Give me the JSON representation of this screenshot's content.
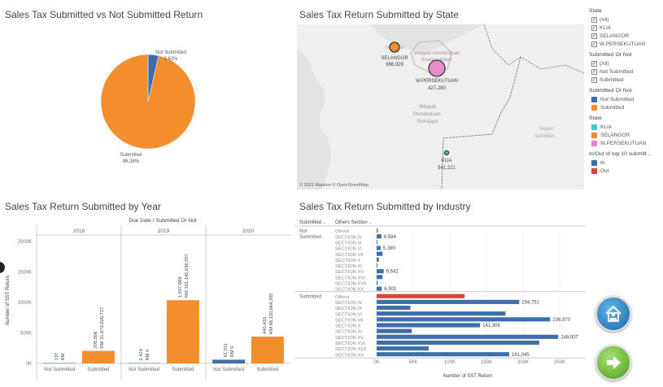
{
  "colors": {
    "not_submitted": "#3e6fa8",
    "submitted": "#f28e2b",
    "klia": "#4fc3d9",
    "selangor": "#f28e2b",
    "wpersekutuan": "#e67fc8",
    "in": "#3e6fa8",
    "out": "#d9453d"
  },
  "pie": {
    "title": "Sales Tax  Submitted vs Not Submitted Return",
    "chart_data": {
      "type": "pie",
      "slices": [
        {
          "label": "Not Submitted",
          "value": 3.62,
          "text": "3.62%"
        },
        {
          "label": "Submitted",
          "value": 96.38,
          "text": "96.38%"
        }
      ]
    }
  },
  "map": {
    "title": "Sales Tax Return Submitted by State",
    "attribution": "© 2021 Mapbox © OpenStreetMap",
    "places": [
      "Selangor",
      "Wilayah Persekutuan Kuala Lumpur",
      "Wilayah Persekutuan Putrajaya",
      "Negeri Sembilan"
    ],
    "place_labels": {
      "wilayah": "Wilayah",
      "persekutuan": "Persekutuan",
      "putrajaya": "Putrajaya",
      "negeri": "Negeri",
      "sembilan": "Sembilan"
    },
    "points": [
      {
        "state": "SELANGOR",
        "value": "986,929",
        "color": "#f28e2b"
      },
      {
        "state": "W.PERSEKUTUAN",
        "value": "427,280",
        "color": "#e67fc8"
      },
      {
        "state": "KLIA",
        "value": "541,221",
        "color": "#4fc3d9"
      }
    ]
  },
  "legend": {
    "state_filter": {
      "title": "State",
      "items": [
        "(All)",
        "KLIA",
        "SELANGOR",
        "W.PERSEKUTUAN"
      ]
    },
    "submitted_filter": {
      "title": "Submitted Or Not",
      "items": [
        "(All)",
        "Not Submitted",
        "Submitted"
      ]
    },
    "submitted_colors": {
      "title": "Submitted Or Not",
      "items": [
        {
          "label": "Not Submitted",
          "color": "#3e6fa8"
        },
        {
          "label": "Submitted",
          "color": "#f28e2b"
        }
      ]
    },
    "state_colors": {
      "title": "State",
      "items": [
        {
          "label": "KLIA",
          "color": "#4fc3d9"
        },
        {
          "label": "SELANGOR",
          "color": "#f28e2b"
        },
        {
          "label": "W.PERSEKUTUAN",
          "color": "#e67fc8"
        }
      ]
    },
    "top10_colors": {
      "title": "In/Out of top 10 submitt...",
      "items": [
        {
          "label": "In",
          "color": "#3e6fa8"
        },
        {
          "label": "Out",
          "color": "#d9453d"
        }
      ]
    }
  },
  "year_chart": {
    "title": "Sales Tax Return Submitted by Year",
    "chart_data": {
      "type": "bar",
      "header": "Due Date  /  Submitted Or Not",
      "ylabel": "Number of SST Return",
      "yticks": [
        "0K",
        "500K",
        "1000K",
        "1500K",
        "2000K"
      ],
      "ylim": [
        0,
        2000000
      ],
      "groups": [
        {
          "year": "2018",
          "bars": [
            {
              "category": "Not Submitted",
              "value": 137,
              "label": "137",
              "rm": "RM"
            },
            {
              "category": "Submitted",
              "value": 205556,
              "label": "205,556",
              "rm": "RM 31,673,026,717"
            }
          ]
        },
        {
          "year": "2019",
          "bars": [
            {
              "category": "Not Submitted",
              "value": 2424,
              "label": "2,424",
              "rm": "RM 0"
            },
            {
              "category": "Submitted",
              "value": 1037069,
              "label": "1,037,069",
              "rm": "RM 101,145,636,007"
            }
          ]
        },
        {
          "year": "2020",
          "bars": [
            {
              "category": "Not Submitted",
              "value": 61011,
              "label": "61,011",
              "rm": "RM 0"
            },
            {
              "category": "Submitted",
              "value": 440433,
              "label": "440,433",
              "rm": "RM 68,110,664,205"
            }
          ]
        }
      ]
    }
  },
  "industry_chart": {
    "title": "Sales Tax Return Submitted by Industry",
    "chart_data": {
      "type": "bar",
      "orientation": "horizontal",
      "col_headers": [
        "Submitted ..",
        "Others Section .."
      ],
      "xlabel": "Number of SST Return",
      "xticks": [
        "0K",
        "50K",
        "100K",
        "150K",
        "200K",
        "250K"
      ],
      "xlim": [
        0,
        283000
      ],
      "groups": [
        {
          "name": "Not Submitted",
          "rows": [
            {
              "section": "Others",
              "value": 1500,
              "out": true,
              "label": ""
            },
            {
              "section": "SECTION IV",
              "value": 6584,
              "label": "6,584"
            },
            {
              "section": "SECTION IX",
              "value": 800,
              "label": ""
            },
            {
              "section": "SECTION VI",
              "value": 5390,
              "label": "5,390"
            },
            {
              "section": "SECTION VII",
              "value": 8000,
              "label": ""
            },
            {
              "section": "SECTION X",
              "value": 3000,
              "label": ""
            },
            {
              "section": "SECTION XI",
              "value": 900,
              "label": ""
            },
            {
              "section": "SECTION XV",
              "value": 9642,
              "label": "9,642"
            },
            {
              "section": "SECTION XVI",
              "value": 8000,
              "label": ""
            },
            {
              "section": "SECTION XVII",
              "value": 1500,
              "label": ""
            },
            {
              "section": "SECTION XX",
              "value": 6902,
              "label": "6,902"
            }
          ]
        },
        {
          "name": "Submitted",
          "rows": [
            {
              "section": "Others",
              "value": 120000,
              "out": true,
              "label": ""
            },
            {
              "section": "SECTION IV",
              "value": 194751,
              "label": "194,751"
            },
            {
              "section": "SECTION IX",
              "value": 46000,
              "label": ""
            },
            {
              "section": "SECTION VI",
              "value": 176000,
              "label": ""
            },
            {
              "section": "SECTION VII",
              "value": 236970,
              "label": "236,970"
            },
            {
              "section": "SECTION X",
              "value": 141306,
              "label": "141,306"
            },
            {
              "section": "SECTION XI",
              "value": 48000,
              "label": ""
            },
            {
              "section": "SECTION XV",
              "value": 248007,
              "label": "248,007"
            },
            {
              "section": "SECTION XVI",
              "value": 222000,
              "label": ""
            },
            {
              "section": "SECTION XVII",
              "value": 71000,
              "label": ""
            },
            {
              "section": "SECTION XX",
              "value": 181045,
              "label": "181,045"
            }
          ]
        }
      ]
    }
  },
  "nav": {
    "home_icon": "home-icon",
    "next_icon": "arrow-right-icon"
  }
}
